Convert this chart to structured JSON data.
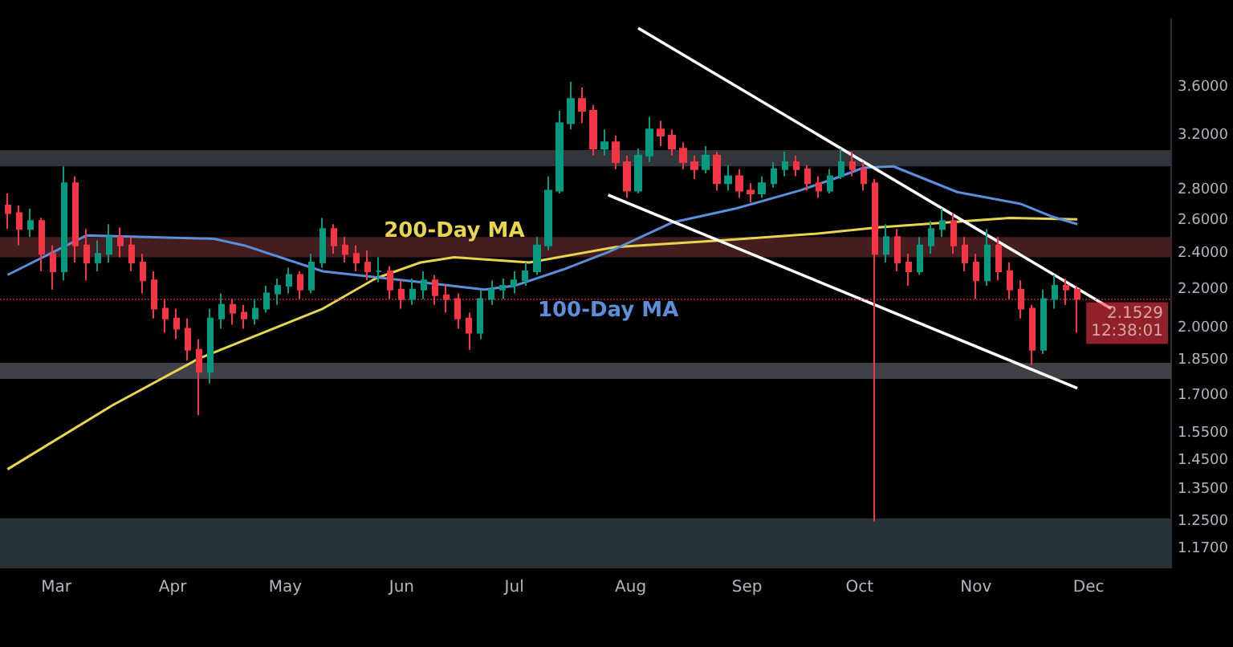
{
  "chart_data": {
    "type": "candlestick",
    "log": true,
    "xlim": [
      "--02-14",
      "--12-23"
    ],
    "xticks": [
      {
        "value": "--03-01",
        "label": "Mar"
      },
      {
        "value": "--04-01",
        "label": "Apr"
      },
      {
        "value": "--05-01",
        "label": "May"
      },
      {
        "value": "--06-01",
        "label": "Jun"
      },
      {
        "value": "--07-01",
        "label": "Jul"
      },
      {
        "value": "--08-01",
        "label": "Aug"
      },
      {
        "value": "--09-01",
        "label": "Sep"
      },
      {
        "value": "--10-01",
        "label": "Oct"
      },
      {
        "value": "--11-01",
        "label": "Nov"
      },
      {
        "value": "--12-01",
        "label": "Dec"
      }
    ],
    "ylim": [
      1.12,
      4.25
    ],
    "yticks": [
      {
        "value": 1.17,
        "label": "1.1700"
      },
      {
        "value": 1.25,
        "label": "1.2500"
      },
      {
        "value": 1.35,
        "label": "1.3500"
      },
      {
        "value": 1.45,
        "label": "1.4500"
      },
      {
        "value": 1.55,
        "label": "1.5500"
      },
      {
        "value": 1.7,
        "label": "1.7000"
      },
      {
        "value": 1.85,
        "label": "1.8500"
      },
      {
        "value": 2.0,
        "label": "2.0000"
      },
      {
        "value": 2.2,
        "label": "2.2000"
      },
      {
        "value": 2.4,
        "label": "2.4000"
      },
      {
        "value": 2.6,
        "label": "2.6000"
      },
      {
        "value": 2.8,
        "label": "2.8000"
      },
      {
        "value": 3.2,
        "label": "3.2000"
      },
      {
        "value": 3.6,
        "label": "3.6000"
      }
    ],
    "bands": [
      {
        "axis": "y",
        "from": 2.97,
        "to": 3.09,
        "color": "#3b3e44"
      },
      {
        "axis": "y",
        "from": 2.38,
        "to": 2.5,
        "color": "#4f2226"
      },
      {
        "axis": "y",
        "from": 1.77,
        "to": 1.84,
        "color": "#4a4c52"
      },
      {
        "axis": "y",
        "from": 1.12,
        "to": 1.26,
        "color": "#2d3b3e"
      }
    ],
    "ref_lines": [
      {
        "axis": "y",
        "value": 2.1529,
        "label": "2.1529",
        "color": "#f23645"
      }
    ],
    "annotations": [
      "12:38:01"
    ],
    "series": [
      {
        "x": [
          "--02-16",
          "--02-19",
          "--02-22",
          "--02-25",
          "--02-28",
          "--03-03",
          "--03-06",
          "--03-09",
          "--03-12",
          "--03-15",
          "--03-18",
          "--03-21",
          "--03-24",
          "--03-27",
          "--03-30",
          "--04-02",
          "--04-05",
          "--04-08",
          "--04-11",
          "--04-14",
          "--04-17",
          "--04-20",
          "--04-23",
          "--04-26",
          "--04-29",
          "--05-02",
          "--05-05",
          "--05-08",
          "--05-11",
          "--05-14",
          "--05-17",
          "--05-20",
          "--05-23",
          "--05-26",
          "--05-29",
          "--06-01",
          "--06-04",
          "--06-07",
          "--06-10",
          "--06-13",
          "--06-16",
          "--06-19",
          "--06-22",
          "--06-25",
          "--06-28",
          "--07-01",
          "--07-04",
          "--07-07",
          "--07-10",
          "--07-13",
          "--07-16",
          "--07-19",
          "--07-22",
          "--07-25",
          "--07-28",
          "--07-31",
          "--08-03",
          "--08-06",
          "--08-09",
          "--08-12",
          "--08-15",
          "--08-18",
          "--08-21",
          "--08-24",
          "--08-27",
          "--08-30",
          "--09-02",
          "--09-05",
          "--09-08",
          "--09-11",
          "--09-14",
          "--09-17",
          "--09-20",
          "--09-23",
          "--09-26",
          "--09-29",
          "--10-02",
          "--10-05",
          "--10-08",
          "--10-11",
          "--10-14",
          "--10-17",
          "--10-20",
          "--10-23",
          "--10-26",
          "--10-29",
          "--11-01",
          "--11-04",
          "--11-07",
          "--11-10",
          "--11-13",
          "--11-16",
          "--11-19",
          "--11-22",
          "--11-25",
          "--11-28"
        ],
        "ohlc": [
          [
            2.7,
            2.78,
            2.55,
            2.65
          ],
          [
            2.65,
            2.7,
            2.45,
            2.55
          ],
          [
            2.55,
            2.68,
            2.5,
            2.6
          ],
          [
            2.6,
            2.62,
            2.3,
            2.4
          ],
          [
            2.4,
            2.45,
            2.2,
            2.3
          ],
          [
            2.3,
            2.97,
            2.25,
            2.85
          ],
          [
            2.85,
            2.9,
            2.35,
            2.45
          ],
          [
            2.45,
            2.55,
            2.25,
            2.35
          ],
          [
            2.35,
            2.48,
            2.3,
            2.4
          ],
          [
            2.4,
            2.58,
            2.35,
            2.5
          ],
          [
            2.5,
            2.56,
            2.38,
            2.45
          ],
          [
            2.45,
            2.5,
            2.3,
            2.35
          ],
          [
            2.35,
            2.4,
            2.18,
            2.25
          ],
          [
            2.25,
            2.3,
            2.05,
            2.1
          ],
          [
            2.1,
            2.15,
            1.98,
            2.05
          ],
          [
            2.05,
            2.1,
            1.95,
            2.0
          ],
          [
            2.0,
            2.05,
            1.85,
            1.9
          ],
          [
            1.9,
            1.95,
            1.62,
            1.8
          ],
          [
            1.8,
            2.1,
            1.75,
            2.05
          ],
          [
            2.05,
            2.18,
            2.0,
            2.12
          ],
          [
            2.12,
            2.15,
            2.02,
            2.08
          ],
          [
            2.08,
            2.12,
            2.0,
            2.05
          ],
          [
            2.05,
            2.15,
            2.02,
            2.1
          ],
          [
            2.1,
            2.22,
            2.08,
            2.18
          ],
          [
            2.18,
            2.26,
            2.12,
            2.22
          ],
          [
            2.22,
            2.32,
            2.18,
            2.28
          ],
          [
            2.28,
            2.3,
            2.15,
            2.2
          ],
          [
            2.2,
            2.4,
            2.18,
            2.35
          ],
          [
            2.35,
            2.62,
            2.32,
            2.55
          ],
          [
            2.55,
            2.58,
            2.4,
            2.45
          ],
          [
            2.45,
            2.5,
            2.35,
            2.4
          ],
          [
            2.4,
            2.45,
            2.3,
            2.35
          ],
          [
            2.35,
            2.42,
            2.25,
            2.3
          ],
          [
            2.3,
            2.38,
            2.24,
            2.3
          ],
          [
            2.3,
            2.33,
            2.15,
            2.2
          ],
          [
            2.2,
            2.25,
            2.1,
            2.15
          ],
          [
            2.15,
            2.26,
            2.12,
            2.2
          ],
          [
            2.2,
            2.3,
            2.15,
            2.25
          ],
          [
            2.25,
            2.28,
            2.12,
            2.17
          ],
          [
            2.17,
            2.22,
            2.08,
            2.15
          ],
          [
            2.15,
            2.18,
            2.0,
            2.05
          ],
          [
            2.05,
            2.08,
            1.9,
            1.98
          ],
          [
            1.98,
            2.2,
            1.95,
            2.15
          ],
          [
            2.15,
            2.25,
            2.12,
            2.2
          ],
          [
            2.2,
            2.26,
            2.15,
            2.22
          ],
          [
            2.22,
            2.3,
            2.18,
            2.25
          ],
          [
            2.25,
            2.35,
            2.22,
            2.3
          ],
          [
            2.3,
            2.5,
            2.28,
            2.45
          ],
          [
            2.45,
            2.9,
            2.42,
            2.8
          ],
          [
            2.8,
            3.4,
            2.78,
            3.3
          ],
          [
            3.3,
            3.65,
            3.25,
            3.5
          ],
          [
            3.5,
            3.6,
            3.3,
            3.4
          ],
          [
            3.4,
            3.45,
            3.05,
            3.1
          ],
          [
            3.1,
            3.25,
            3.05,
            3.15
          ],
          [
            3.15,
            3.2,
            2.95,
            3.0
          ],
          [
            3.0,
            3.05,
            2.75,
            2.8
          ],
          [
            2.8,
            3.1,
            2.78,
            3.05
          ],
          [
            3.05,
            3.35,
            3.0,
            3.25
          ],
          [
            3.25,
            3.32,
            3.12,
            3.2
          ],
          [
            3.2,
            3.25,
            3.05,
            3.1
          ],
          [
            3.1,
            3.15,
            2.95,
            3.0
          ],
          [
            3.0,
            3.05,
            2.88,
            2.95
          ],
          [
            2.95,
            3.12,
            2.92,
            3.05
          ],
          [
            3.05,
            3.08,
            2.8,
            2.85
          ],
          [
            2.85,
            2.98,
            2.8,
            2.9
          ],
          [
            2.9,
            2.95,
            2.75,
            2.8
          ],
          [
            2.8,
            2.85,
            2.72,
            2.78
          ],
          [
            2.78,
            2.9,
            2.75,
            2.85
          ],
          [
            2.85,
            3.0,
            2.82,
            2.95
          ],
          [
            2.95,
            3.08,
            2.9,
            3.0
          ],
          [
            3.0,
            3.05,
            2.9,
            2.95
          ],
          [
            2.95,
            2.98,
            2.8,
            2.85
          ],
          [
            2.85,
            2.9,
            2.75,
            2.8
          ],
          [
            2.8,
            2.95,
            2.78,
            2.9
          ],
          [
            2.9,
            3.1,
            2.88,
            3.0
          ],
          [
            3.0,
            3.08,
            2.9,
            2.95
          ],
          [
            2.95,
            3.0,
            2.8,
            2.85
          ],
          [
            2.85,
            2.88,
            1.25,
            2.4
          ],
          [
            2.4,
            2.58,
            2.35,
            2.5
          ],
          [
            2.5,
            2.55,
            2.3,
            2.35
          ],
          [
            2.35,
            2.4,
            2.22,
            2.3
          ],
          [
            2.3,
            2.5,
            2.28,
            2.45
          ],
          [
            2.45,
            2.6,
            2.4,
            2.55
          ],
          [
            2.55,
            2.68,
            2.5,
            2.6
          ],
          [
            2.6,
            2.65,
            2.4,
            2.45
          ],
          [
            2.45,
            2.5,
            2.3,
            2.35
          ],
          [
            2.35,
            2.4,
            2.15,
            2.25
          ],
          [
            2.25,
            2.55,
            2.22,
            2.45
          ],
          [
            2.45,
            2.5,
            2.25,
            2.3
          ],
          [
            2.3,
            2.35,
            2.15,
            2.2
          ],
          [
            2.2,
            2.25,
            2.05,
            2.1
          ],
          [
            2.1,
            2.12,
            1.83,
            1.9
          ],
          [
            1.9,
            2.2,
            1.88,
            2.15
          ],
          [
            2.15,
            2.28,
            2.1,
            2.22
          ],
          [
            2.22,
            2.26,
            2.12,
            2.2
          ],
          [
            2.2,
            2.22,
            1.98,
            2.15
          ]
        ]
      },
      {
        "type": "line",
        "name": "200-Day MA",
        "color": "#e8d44d",
        "x": [
          "--02-16",
          "--03-16",
          "--04-08",
          "--05-11",
          "--05-25",
          "--06-06",
          "--06-15",
          "--07-05",
          "--07-28",
          "--08-25",
          "--09-19",
          "--10-06",
          "--11-10",
          "--11-28"
        ],
        "values": [
          1.42,
          1.66,
          1.86,
          2.1,
          2.26,
          2.35,
          2.38,
          2.35,
          2.44,
          2.48,
          2.52,
          2.56,
          2.62,
          2.61
        ]
      },
      {
        "type": "line",
        "name": "100-Day MA",
        "color": "#5b8fd9",
        "x": [
          "--02-16",
          "--03-09",
          "--04-12",
          "--04-20",
          "--05-11",
          "--06-06",
          "--06-23",
          "--07-01",
          "--07-14",
          "--07-26",
          "--08-12",
          "--08-29",
          "--09-15",
          "--09-24",
          "--10-02",
          "--10-10",
          "--10-27",
          "--11-13",
          "--11-21",
          "--11-28"
        ],
        "values": [
          2.28,
          2.51,
          2.49,
          2.45,
          2.3,
          2.24,
          2.2,
          2.22,
          2.31,
          2.41,
          2.59,
          2.68,
          2.8,
          2.88,
          2.96,
          2.97,
          2.79,
          2.71,
          2.63,
          2.58
        ]
      },
      {
        "type": "line",
        "color": "#ffffff",
        "x": [
          "--08-03",
          "--12-07"
        ],
        "values": [
          4.16,
          2.1
        ]
      },
      {
        "type": "line",
        "color": "#ffffff",
        "x": [
          "--07-26",
          "--11-28"
        ],
        "values": [
          2.77,
          1.73
        ]
      }
    ]
  }
}
